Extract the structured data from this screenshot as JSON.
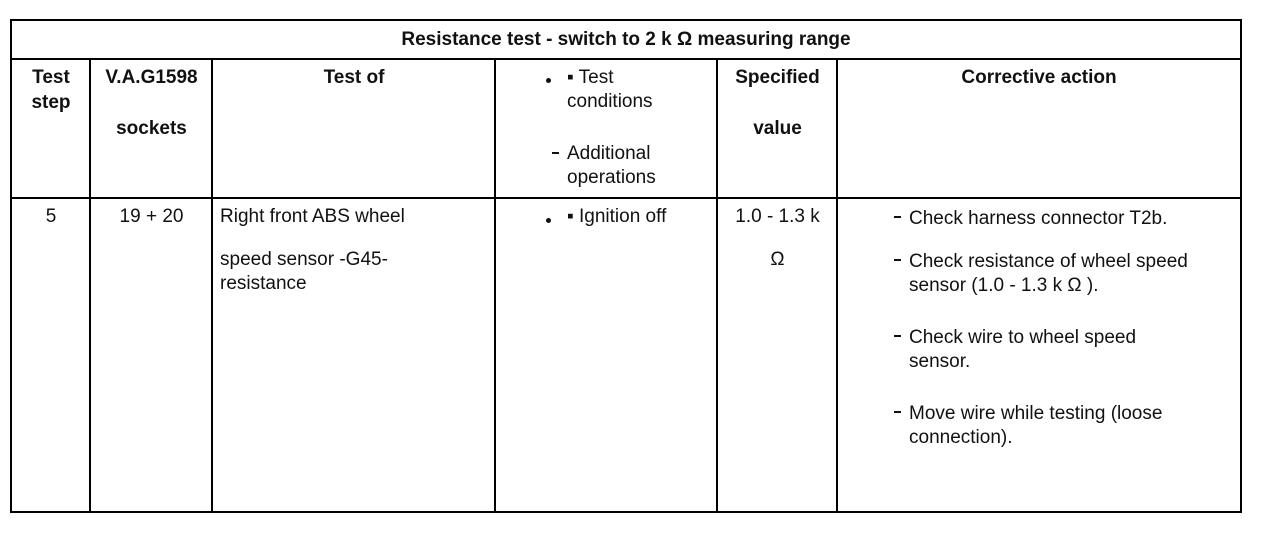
{
  "table": {
    "title": "Resistance test - switch to 2 k Ω measuring range",
    "header": {
      "test_step": [
        "Test",
        "step"
      ],
      "sockets": [
        "V.A.G1598",
        "sockets"
      ],
      "test_of": "Test of",
      "conditions": [
        "▪ Test",
        "conditions"
      ],
      "operations": [
        "Additional",
        "operations"
      ],
      "specified": [
        "Specified",
        "value"
      ],
      "corrective": "Corrective action"
    },
    "rows": [
      {
        "test_step": "5",
        "sockets": "19 + 20",
        "test_of": [
          "Right front ABS wheel",
          "speed sensor -G45-",
          "resistance"
        ],
        "conditions": "▪ Ignition off",
        "specified": [
          "1.0 - 1.3 k",
          "Ω"
        ],
        "actions": [
          [
            "Check harness connector T2b."
          ],
          [
            "Check resistance of wheel speed",
            "sensor (1.0 - 1.3 k Ω )."
          ],
          [
            "Check wire to wheel speed",
            "sensor."
          ],
          [
            "Move wire while testing (loose",
            "connection)."
          ]
        ]
      }
    ]
  }
}
